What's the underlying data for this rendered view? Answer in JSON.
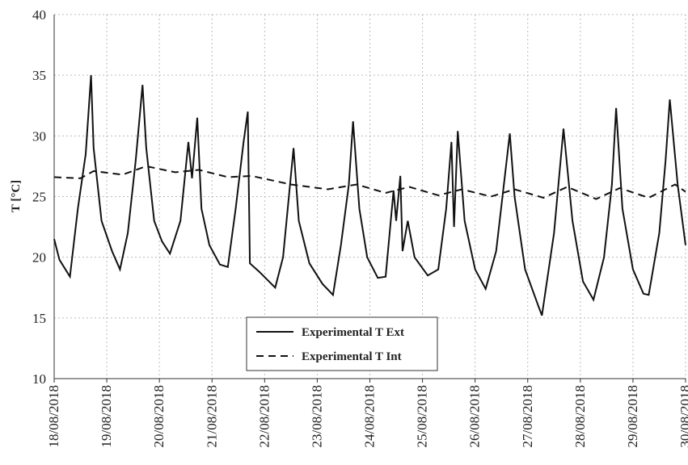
{
  "chart_data": {
    "type": "line",
    "y_label": "T [°C]",
    "ylim": [
      10,
      40
    ],
    "yticks": [
      10,
      15,
      20,
      25,
      30,
      35,
      40
    ],
    "xlim": [
      0,
      12
    ],
    "xticks": [
      {
        "value": 0,
        "label": "18/08/2018"
      },
      {
        "value": 1,
        "label": "19/08/2018"
      },
      {
        "value": 2,
        "label": "20/08/2018"
      },
      {
        "value": 3,
        "label": "21/08/2018"
      },
      {
        "value": 4,
        "label": "22/08/2018"
      },
      {
        "value": 5,
        "label": "23/08/2018"
      },
      {
        "value": 6,
        "label": "24/08/2018"
      },
      {
        "value": 7,
        "label": "25/08/2018"
      },
      {
        "value": 8,
        "label": "26/08/2018"
      },
      {
        "value": 9,
        "label": "27/08/2018"
      },
      {
        "value": 10,
        "label": "28/08/2018"
      },
      {
        "value": 11,
        "label": "29/08/2018"
      },
      {
        "value": 12,
        "label": "30/08/2018"
      }
    ],
    "grid": true,
    "legend": "bottom",
    "series": [
      {
        "name": "Experimental T Ext",
        "color": "#111111",
        "dash": "solid",
        "x": [
          0,
          0.1,
          0.3,
          0.45,
          0.6,
          0.7,
          0.75,
          0.9,
          1.1,
          1.25,
          1.4,
          1.55,
          1.68,
          1.75,
          1.9,
          2.05,
          2.2,
          2.4,
          2.55,
          2.62,
          2.72,
          2.8,
          2.95,
          3.15,
          3.3,
          3.45,
          3.6,
          3.68,
          3.72,
          3.9,
          4.2,
          4.35,
          4.55,
          4.65,
          4.85,
          5.1,
          5.3,
          5.45,
          5.6,
          5.68,
          5.8,
          5.95,
          6.15,
          6.3,
          6.45,
          6.5,
          6.58,
          6.62,
          6.72,
          6.85,
          7.1,
          7.3,
          7.45,
          7.55,
          7.6,
          7.67,
          7.8,
          8.0,
          8.2,
          8.4,
          8.66,
          8.75,
          8.95,
          9.2,
          9.27,
          9.5,
          9.68,
          9.85,
          10.05,
          10.25,
          10.45,
          10.6,
          10.68,
          10.8,
          11.0,
          11.2,
          11.3,
          11.5,
          11.62,
          11.7,
          11.85,
          12.0
        ],
        "values": [
          21.5,
          19.8,
          18.4,
          24,
          28.5,
          35,
          29,
          23,
          20.5,
          19,
          22,
          28,
          34.2,
          29,
          23,
          21.3,
          20.3,
          23,
          29.5,
          26.5,
          31.5,
          24,
          21,
          19.4,
          19.2,
          24,
          29.5,
          32,
          19.5,
          18.8,
          17.5,
          20,
          29,
          23,
          19.5,
          17.8,
          16.9,
          21,
          26,
          31.2,
          24,
          20,
          18.3,
          18.4,
          25.5,
          23,
          26.7,
          20.5,
          23,
          20,
          18.5,
          19,
          24,
          29.5,
          22.5,
          30.4,
          23,
          19,
          17.4,
          20.5,
          30.2,
          25,
          19,
          16,
          15.2,
          22,
          30.6,
          23,
          18,
          16.5,
          20,
          26,
          32.3,
          24,
          19,
          17,
          16.9,
          22,
          28,
          33,
          26,
          21
        ]
      },
      {
        "name": "Experimental T Int",
        "color": "#111111",
        "dash": "dashed",
        "x": [
          0,
          0.5,
          0.75,
          1.3,
          1.75,
          2.3,
          2.75,
          3.3,
          3.75,
          4.5,
          5.2,
          5.75,
          6.3,
          6.75,
          7.3,
          7.75,
          8.3,
          8.75,
          9.3,
          9.75,
          10.3,
          10.75,
          11.3,
          11.8,
          12
        ],
        "values": [
          26.6,
          26.5,
          27.1,
          26.8,
          27.5,
          27.0,
          27.2,
          26.6,
          26.7,
          26.0,
          25.6,
          26.0,
          25.3,
          25.8,
          25.1,
          25.6,
          25.0,
          25.6,
          24.9,
          25.8,
          24.8,
          25.7,
          24.9,
          26.0,
          25.4
        ]
      }
    ]
  }
}
